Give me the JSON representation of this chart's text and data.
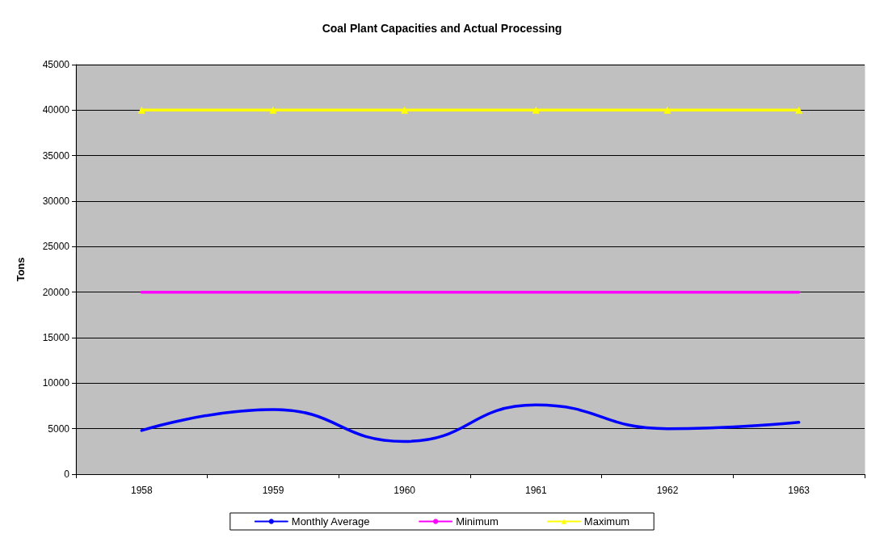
{
  "chart_data": {
    "type": "line",
    "title": "Coal Plant Capacities and Actual Processing",
    "ylabel": "Tons",
    "categories": [
      "1958",
      "1959",
      "1960",
      "1961",
      "1962",
      "1963"
    ],
    "series": [
      {
        "name": "Monthly Average",
        "color": "#0000ff",
        "values": [
          4800,
          7100,
          3600,
          7600,
          5000,
          5700
        ],
        "marker": "none"
      },
      {
        "name": "Minimum",
        "color": "#ff00ff",
        "values": [
          20000,
          20000,
          20000,
          20000,
          20000,
          20000
        ],
        "marker": "none"
      },
      {
        "name": "Maximum",
        "color": "#ffff00",
        "values": [
          40000,
          40000,
          40000,
          40000,
          40000,
          40000
        ],
        "marker": "triangle"
      }
    ],
    "ylim": [
      0,
      45000
    ],
    "yticks": [
      0,
      5000,
      10000,
      15000,
      20000,
      25000,
      30000,
      35000,
      40000,
      45000
    ],
    "grid": "y",
    "legend": "bottom",
    "line_style": "solid"
  }
}
